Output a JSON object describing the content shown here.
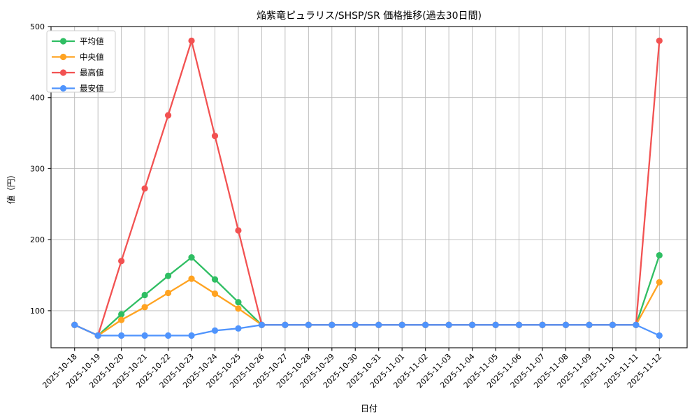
{
  "chart_data": {
    "type": "line",
    "title": "焔紫竜ピュラリス/SHSP/SR 価格推移(過去30日間)",
    "xlabel": "日付",
    "ylabel": "値（円）",
    "categories": [
      "2025-10-18",
      "2025-10-19",
      "2025-10-20",
      "2025-10-21",
      "2025-10-22",
      "2025-10-23",
      "2025-10-24",
      "2025-10-25",
      "2025-10-26",
      "2025-10-27",
      "2025-10-28",
      "2025-10-29",
      "2025-10-30",
      "2025-10-31",
      "2025-11-01",
      "2025-11-02",
      "2025-11-03",
      "2025-11-04",
      "2025-11-05",
      "2025-11-06",
      "2025-11-07",
      "2025-11-08",
      "2025-11-09",
      "2025-11-10",
      "2025-11-11",
      "2025-11-12"
    ],
    "series": [
      {
        "name": "平均値",
        "color": "#2fbe63",
        "values": [
          80,
          65,
          95,
          122,
          149,
          175,
          144,
          112,
          80,
          80,
          80,
          80,
          80,
          80,
          80,
          80,
          80,
          80,
          80,
          80,
          80,
          80,
          80,
          80,
          80,
          178
        ]
      },
      {
        "name": "中央値",
        "color": "#ffa321",
        "values": [
          80,
          65,
          87,
          105,
          125,
          145,
          124,
          103,
          80,
          80,
          80,
          80,
          80,
          80,
          80,
          80,
          80,
          80,
          80,
          80,
          80,
          80,
          80,
          80,
          80,
          140
        ]
      },
      {
        "name": "最高値",
        "color": "#f25252",
        "values": [
          80,
          65,
          170,
          272,
          375,
          480,
          346,
          213,
          80,
          80,
          80,
          80,
          80,
          80,
          80,
          80,
          80,
          80,
          80,
          80,
          80,
          80,
          80,
          80,
          80,
          480
        ]
      },
      {
        "name": "最安値",
        "color": "#4f94fd",
        "values": [
          80,
          65,
          65,
          65,
          65,
          65,
          72,
          75,
          80,
          80,
          80,
          80,
          80,
          80,
          80,
          80,
          80,
          80,
          80,
          80,
          80,
          80,
          80,
          80,
          80,
          65
        ]
      }
    ],
    "y_ticks": [
      100,
      200,
      300,
      400,
      500
    ],
    "ylim": [
      48,
      500
    ],
    "grid": true,
    "legend_position": "top-left",
    "colors": {
      "grid": "#b9b9b9",
      "spine": "#1a1a1a",
      "legend_border": "#cccccc",
      "legend_bg": "#ffffff"
    }
  }
}
